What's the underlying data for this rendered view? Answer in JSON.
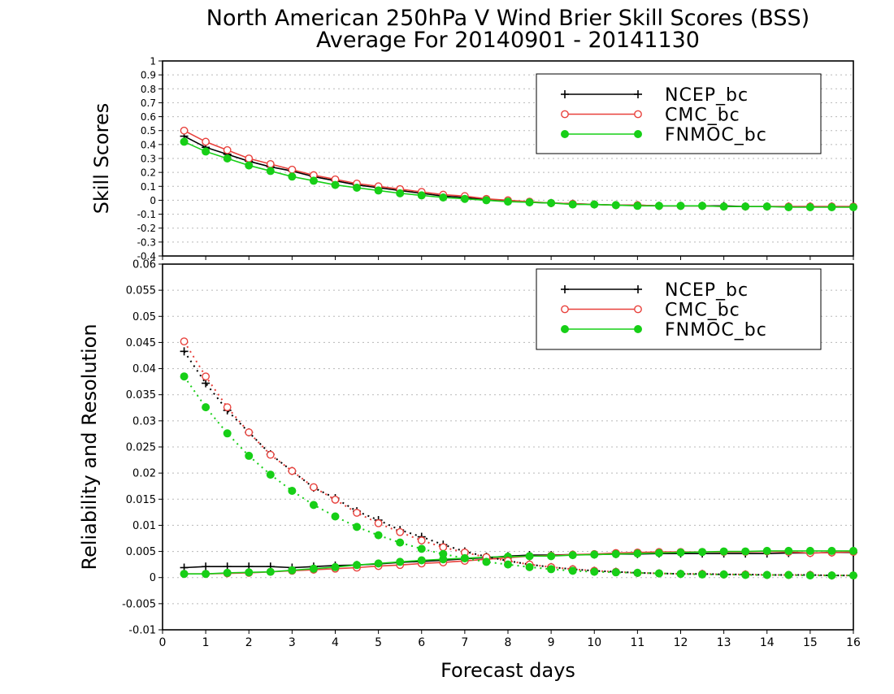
{
  "title": {
    "line1": "North American 250hPa V Wind Brier Skill Scores (BSS)",
    "line2": "Average For 20140901 - 20141130"
  },
  "xaxis": {
    "label": "Forecast days"
  },
  "colors": {
    "NCEP_bc": "#000000",
    "CMC_bc": "#e8413c",
    "FNMOC_bc": "#17cf17",
    "grid": "#b8b8b8"
  },
  "chart_data": [
    {
      "type": "line",
      "panel": "top",
      "ylabel": "Skill Scores",
      "xlim": [
        0,
        16
      ],
      "ylim": [
        -0.4,
        1
      ],
      "grid": "horizontal dotted",
      "legend_placement": "top-right",
      "x_ticks": [
        "0",
        "1",
        "2",
        "3",
        "4",
        "5",
        "6",
        "7",
        "8",
        "9",
        "10",
        "11",
        "12",
        "13",
        "14",
        "15",
        "16"
      ],
      "y_ticks": [
        "-0.4",
        "-0.3",
        "-0.2",
        "-0.1",
        "0",
        "0.1",
        "0.2",
        "0.3",
        "0.4",
        "0.5",
        "0.6",
        "0.7",
        "0.8",
        "0.9",
        "1"
      ],
      "x": [
        0.5,
        1,
        1.5,
        2,
        2.5,
        3,
        3.5,
        4,
        4.5,
        5,
        5.5,
        6,
        6.5,
        7,
        7.5,
        8,
        8.5,
        9,
        9.5,
        10,
        10.5,
        11,
        11.5,
        12,
        12.5,
        13,
        13.5,
        14,
        14.5,
        15,
        15.5,
        16
      ],
      "series": [
        {
          "name": "NCEP_bc",
          "marker": "plus",
          "style": "solid",
          "values": [
            0.46,
            0.38,
            0.33,
            0.28,
            0.24,
            0.21,
            0.17,
            0.14,
            0.11,
            0.09,
            0.07,
            0.05,
            0.03,
            0.02,
            0.005,
            -0.005,
            -0.015,
            -0.02,
            -0.025,
            -0.03,
            -0.035,
            -0.035,
            -0.04,
            -0.04,
            -0.04,
            -0.04,
            -0.045,
            -0.045,
            -0.045,
            -0.045,
            -0.045,
            -0.045
          ]
        },
        {
          "name": "CMC_bc",
          "marker": "circle-open",
          "style": "solid",
          "values": [
            0.5,
            0.42,
            0.36,
            0.3,
            0.26,
            0.22,
            0.18,
            0.15,
            0.12,
            0.1,
            0.08,
            0.06,
            0.04,
            0.03,
            0.01,
            0.0,
            -0.01,
            -0.02,
            -0.025,
            -0.03,
            -0.035,
            -0.035,
            -0.04,
            -0.04,
            -0.04,
            -0.045,
            -0.045,
            -0.045,
            -0.045,
            -0.045,
            -0.045,
            -0.045
          ]
        },
        {
          "name": "FNMOC_bc",
          "marker": "circle-filled",
          "style": "solid",
          "values": [
            0.42,
            0.35,
            0.3,
            0.25,
            0.21,
            0.17,
            0.14,
            0.11,
            0.09,
            0.07,
            0.05,
            0.035,
            0.02,
            0.01,
            0.0,
            -0.01,
            -0.015,
            -0.02,
            -0.03,
            -0.03,
            -0.035,
            -0.04,
            -0.04,
            -0.04,
            -0.04,
            -0.045,
            -0.045,
            -0.045,
            -0.05,
            -0.05,
            -0.05,
            -0.05
          ]
        }
      ]
    },
    {
      "type": "line",
      "panel": "bottom",
      "ylabel": "Reliability and Resolution",
      "xlim": [
        0,
        16
      ],
      "ylim": [
        -0.01,
        0.06
      ],
      "grid": "horizontal dotted",
      "legend_placement": "top-right",
      "x_ticks": [
        "0",
        "1",
        "2",
        "3",
        "4",
        "5",
        "6",
        "7",
        "8",
        "9",
        "10",
        "11",
        "12",
        "13",
        "14",
        "15",
        "16"
      ],
      "y_ticks": [
        "-0.01",
        "-0.005",
        "0",
        "0.005",
        "0.01",
        "0.015",
        "0.02",
        "0.025",
        "0.03",
        "0.035",
        "0.04",
        "0.045",
        "0.05",
        "0.055",
        "0.06"
      ],
      "x": [
        0.5,
        1,
        1.5,
        2,
        2.5,
        3,
        3.5,
        4,
        4.5,
        5,
        5.5,
        6,
        6.5,
        7,
        7.5,
        8,
        8.5,
        9,
        9.5,
        10,
        10.5,
        11,
        11.5,
        12,
        12.5,
        13,
        13.5,
        14,
        14.5,
        15,
        15.5,
        16
      ],
      "series": [
        {
          "name": "NCEP_bc",
          "marker": "plus",
          "style": "solid",
          "values": [
            0.0019,
            0.0021,
            0.0021,
            0.0021,
            0.0021,
            0.0019,
            0.0021,
            0.0023,
            0.0024,
            0.0026,
            0.0029,
            0.0031,
            0.0033,
            0.0036,
            0.0038,
            0.0041,
            0.0043,
            0.0043,
            0.0044,
            0.0044,
            0.0045,
            0.0045,
            0.0046,
            0.0046,
            0.0046,
            0.0046,
            0.0046,
            0.0046,
            0.0047,
            0.0047,
            0.0048,
            0.0048
          ]
        },
        {
          "name": "CMC_bc",
          "marker": "circle-open",
          "style": "solid",
          "values": [
            0.0007,
            0.0007,
            0.0008,
            0.0009,
            0.0011,
            0.0013,
            0.0015,
            0.0017,
            0.0019,
            0.0022,
            0.0024,
            0.0027,
            0.0029,
            0.0032,
            0.0035,
            0.0038,
            0.0041,
            0.0042,
            0.0044,
            0.0045,
            0.0047,
            0.0048,
            0.0049,
            0.0049,
            0.0049,
            0.0049,
            0.0049,
            0.005,
            0.0049,
            0.0047,
            0.0048,
            0.0049
          ]
        },
        {
          "name": "FNMOC_bc",
          "marker": "circle-filled",
          "style": "solid",
          "values": [
            0.0007,
            0.0007,
            0.0009,
            0.001,
            0.0011,
            0.0014,
            0.0017,
            0.002,
            0.0024,
            0.0027,
            0.003,
            0.0033,
            0.0035,
            0.0037,
            0.0039,
            0.004,
            0.0041,
            0.0041,
            0.0043,
            0.0044,
            0.0045,
            0.0046,
            0.0047,
            0.0048,
            0.0049,
            0.005,
            0.005,
            0.0051,
            0.0051,
            0.0051,
            0.0051,
            0.0051
          ]
        },
        {
          "name": "",
          "legend_ref": "NCEP_bc",
          "marker": "plus",
          "style": "dotted",
          "values": [
            0.0433,
            0.0372,
            0.032,
            0.0278,
            0.0236,
            0.0204,
            0.0172,
            0.0152,
            0.0127,
            0.011,
            0.0091,
            0.0078,
            0.0063,
            0.005,
            0.004,
            0.0032,
            0.0025,
            0.002,
            0.0016,
            0.0013,
            0.0011,
            0.0009,
            0.0008,
            0.0007,
            0.0007,
            0.0006,
            0.0006,
            0.0005,
            0.0005,
            0.0005,
            0.0004,
            0.0004
          ]
        },
        {
          "name": "",
          "legend_ref": "CMC_bc",
          "marker": "circle-open",
          "style": "dotted",
          "values": [
            0.0452,
            0.0385,
            0.0326,
            0.0278,
            0.0235,
            0.0204,
            0.0173,
            0.0149,
            0.0124,
            0.0104,
            0.0087,
            0.0071,
            0.0058,
            0.0048,
            0.0039,
            0.0032,
            0.0025,
            0.002,
            0.0016,
            0.0013,
            0.0011,
            0.0009,
            0.0008,
            0.0007,
            0.0007,
            0.0006,
            0.0006,
            0.0005,
            0.0005,
            0.0005,
            0.0004,
            0.0004
          ]
        },
        {
          "name": "",
          "legend_ref": "FNMOC_bc",
          "marker": "circle-filled",
          "style": "dotted",
          "values": [
            0.0385,
            0.0326,
            0.0276,
            0.0233,
            0.0197,
            0.0166,
            0.0139,
            0.0117,
            0.0097,
            0.0081,
            0.0067,
            0.0055,
            0.0045,
            0.0037,
            0.003,
            0.0025,
            0.002,
            0.0016,
            0.0013,
            0.0011,
            0.001,
            0.0009,
            0.0008,
            0.0007,
            0.0006,
            0.0006,
            0.0005,
            0.0005,
            0.0005,
            0.0004,
            0.0004,
            0.0004
          ]
        }
      ]
    }
  ],
  "legends": {
    "top": [
      "NCEP_bc",
      "CMC_bc",
      "FNMOC_bc"
    ],
    "bottom": [
      "NCEP_bc",
      "CMC_bc",
      "FNMOC_bc"
    ]
  }
}
